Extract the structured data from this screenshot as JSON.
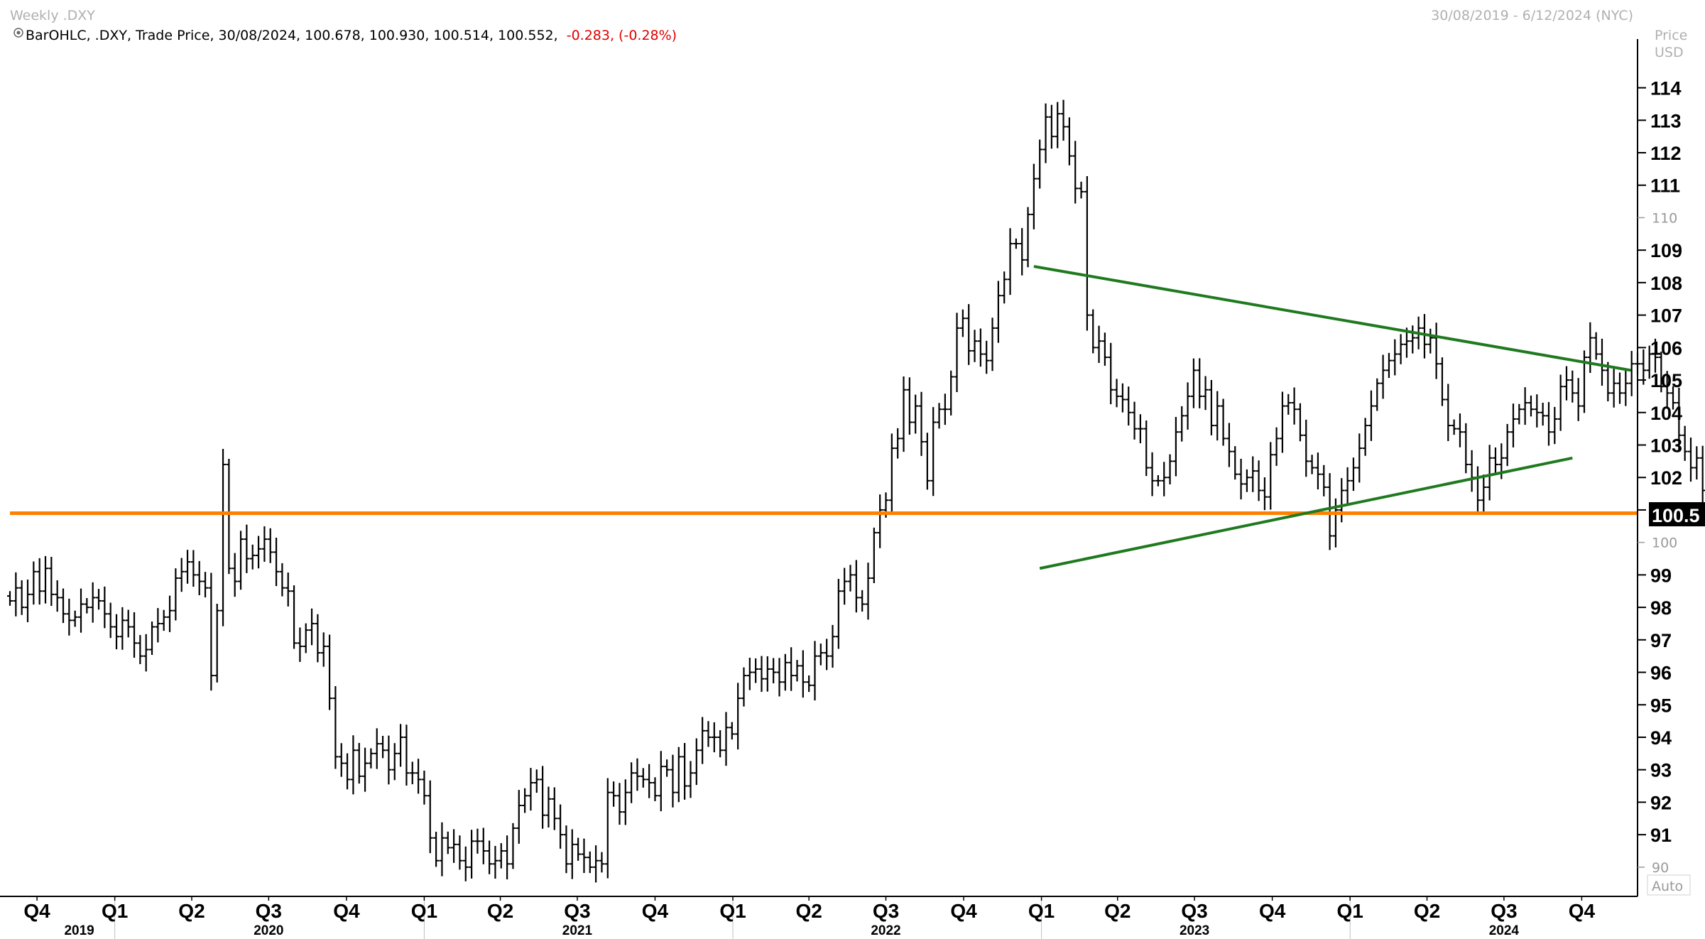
{
  "header": {
    "title": "Weekly .DXY",
    "date_range": "30/08/2019 - 6/12/2024 (NYC)",
    "legend_prefix": "BarOHLC, .DXY, Trade Price, 30/08/2024, 100.678, 100.930, 100.514, 100.552,",
    "legend_change": "-0.283, (-0.28%)",
    "axis_title_line1": "Price",
    "axis_title_line2": "USD",
    "last_price_label": "100.5",
    "auto_label": "Auto"
  },
  "colors": {
    "bars": "#000000",
    "support_line": "#ff8000",
    "trend_lines": "#1f7a1f",
    "change_text": "#e00000",
    "header_text": "#b0b0b0"
  },
  "chart_data": {
    "type": "ohlc",
    "title": "Weekly .DXY",
    "ylabel": "Price USD",
    "ylim": [
      89.1,
      115.5
    ],
    "yticks_major": [
      91,
      92,
      93,
      94,
      95,
      96,
      97,
      98,
      99,
      101,
      102,
      103,
      104,
      105,
      106,
      107,
      108,
      109,
      111,
      112,
      113,
      114
    ],
    "yticks_minor": [
      90,
      100,
      110
    ],
    "quarter_labels": [
      {
        "label": "Q4",
        "date": "2019-10-01"
      },
      {
        "label": "Q1",
        "date": "2020-01-01"
      },
      {
        "label": "Q2",
        "date": "2020-04-01"
      },
      {
        "label": "Q3",
        "date": "2020-07-01"
      },
      {
        "label": "Q4",
        "date": "2020-10-01"
      },
      {
        "label": "Q1",
        "date": "2021-01-01"
      },
      {
        "label": "Q2",
        "date": "2021-04-01"
      },
      {
        "label": "Q3",
        "date": "2021-07-01"
      },
      {
        "label": "Q4",
        "date": "2021-10-01"
      },
      {
        "label": "Q1",
        "date": "2022-01-01"
      },
      {
        "label": "Q2",
        "date": "2022-04-01"
      },
      {
        "label": "Q3",
        "date": "2022-07-01"
      },
      {
        "label": "Q4",
        "date": "2022-10-01"
      },
      {
        "label": "Q1",
        "date": "2023-01-01"
      },
      {
        "label": "Q2",
        "date": "2023-04-01"
      },
      {
        "label": "Q3",
        "date": "2023-07-01"
      },
      {
        "label": "Q4",
        "date": "2023-10-01"
      },
      {
        "label": "Q1",
        "date": "2024-01-01"
      },
      {
        "label": "Q2",
        "date": "2024-04-01"
      },
      {
        "label": "Q3",
        "date": "2024-07-01"
      },
      {
        "label": "Q4",
        "date": "2024-10-01"
      }
    ],
    "year_labels": [
      {
        "label": "2019",
        "date": "2019-11-20"
      },
      {
        "label": "2020",
        "date": "2020-07-01"
      },
      {
        "label": "2021",
        "date": "2021-07-01"
      },
      {
        "label": "2022",
        "date": "2022-07-01"
      },
      {
        "label": "2023",
        "date": "2023-07-01"
      },
      {
        "label": "2024",
        "date": "2024-07-01"
      }
    ],
    "year_separators": [
      "2020-01-01",
      "2021-01-01",
      "2022-01-01",
      "2023-01-01",
      "2024-01-01"
    ],
    "start_date": "2019-08-30",
    "end_date": "2024-12-06",
    "series": [
      {
        "name": ".DXY",
        "weekly_close": [
          98.2,
          98.6,
          98.0,
          98.4,
          99.1,
          98.5,
          99.2,
          98.4,
          98.3,
          97.8,
          97.6,
          97.7,
          98.1,
          98.0,
          98.3,
          98.2,
          97.8,
          97.4,
          97.1,
          97.6,
          97.4,
          96.9,
          96.5,
          96.7,
          97.4,
          97.5,
          97.7,
          97.9,
          98.9,
          99.1,
          99.4,
          99.0,
          98.8,
          98.6,
          95.9,
          97.9,
          102.4,
          99.2,
          98.8,
          100.1,
          99.5,
          99.6,
          99.8,
          100.1,
          99.7,
          99.1,
          98.6,
          98.5,
          96.9,
          96.8,
          97.3,
          97.5,
          96.6,
          96.8,
          95.2,
          93.4,
          93.2,
          92.7,
          93.6,
          92.8,
          93.2,
          93.5,
          93.8,
          93.6,
          93.0,
          93.5,
          94.0,
          92.9,
          92.9,
          92.7,
          92.2,
          90.9,
          90.2,
          90.9,
          90.6,
          90.7,
          90.2,
          90.0,
          90.8,
          90.8,
          90.5,
          90.1,
          90.2,
          90.5,
          90.1,
          91.2,
          91.9,
          92.2,
          92.6,
          92.7,
          91.6,
          92.1,
          91.5,
          91.0,
          90.1,
          90.7,
          90.4,
          90.3,
          90.0,
          90.2,
          90.1,
          92.3,
          92.2,
          91.7,
          92.3,
          92.9,
          92.8,
          92.7,
          92.6,
          92.2,
          93.1,
          93.0,
          92.3,
          93.4,
          92.5,
          92.9,
          93.6,
          94.2,
          94.0,
          94.0,
          93.6,
          94.3,
          94.1,
          95.2,
          95.9,
          96.0,
          96.1,
          95.8,
          96.1,
          96.0,
          95.7,
          96.3,
          95.9,
          96.2,
          95.7,
          95.6,
          96.5,
          96.6,
          96.5,
          97.1,
          98.5,
          98.8,
          99.0,
          98.3,
          98.1,
          98.9,
          100.3,
          101.0,
          101.3,
          102.9,
          103.2,
          104.7,
          103.7,
          104.2,
          103.1,
          101.9,
          103.7,
          104.1,
          104.1,
          105.1,
          106.6,
          106.9,
          105.9,
          106.2,
          105.8,
          105.6,
          106.6,
          107.6,
          108.1,
          109.2,
          109.2,
          108.7,
          110.1,
          111.2,
          112.1,
          113.1,
          112.5,
          113.2,
          112.8,
          111.9,
          110.9,
          110.8,
          107.0,
          106.0,
          106.2,
          105.7,
          104.7,
          104.5,
          104.4,
          104.0,
          103.5,
          103.5,
          102.3,
          101.9,
          101.9,
          102.0,
          102.5,
          103.4,
          103.9,
          104.5,
          105.3,
          104.5,
          104.7,
          103.6,
          104.2,
          103.2,
          102.8,
          102.1,
          101.8,
          102.0,
          102.2,
          101.6,
          101.4,
          102.7,
          103.2,
          104.2,
          104.3,
          104.1,
          103.3,
          102.5,
          102.3,
          102.1,
          101.7,
          100.2,
          101.0,
          101.6,
          101.9,
          102.3,
          102.9,
          103.6,
          104.2,
          104.9,
          105.3,
          105.6,
          105.8,
          106.1,
          106.2,
          106.3,
          106.6,
          106.1,
          106.3,
          105.5,
          104.4,
          103.6,
          103.5,
          103.4,
          102.4,
          102.0,
          101.3,
          101.7,
          102.6,
          102.4,
          102.6,
          103.4,
          103.8,
          104.1,
          104.3,
          104.1,
          104.0,
          103.9,
          103.4,
          103.8,
          104.8,
          105.0,
          104.6,
          104.2,
          105.7,
          106.3,
          105.8,
          105.3,
          104.6,
          104.9,
          104.6,
          104.9,
          105.5,
          105.5,
          105.3,
          105.8,
          105.7,
          104.8,
          104.6,
          104.3,
          103.3,
          102.8,
          102.3,
          102.6,
          101.6,
          100.6
        ]
      }
    ],
    "horizontal_line": {
      "name": "support",
      "value": 100.9
    },
    "trend_lines": [
      {
        "name": "upper",
        "start": [
          "2022-12-23",
          108.5
        ],
        "end": [
          "2024-11-28",
          105.3
        ]
      },
      {
        "name": "lower",
        "start": [
          "2022-12-30",
          99.2
        ],
        "end": [
          "2024-09-20",
          102.6
        ]
      }
    ]
  }
}
